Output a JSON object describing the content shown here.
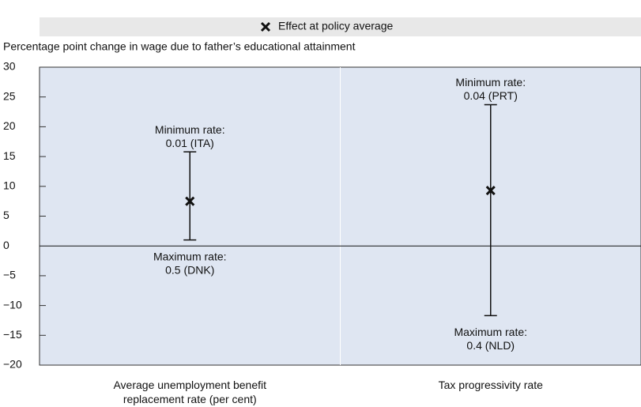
{
  "chart_data": {
    "type": "errorbar",
    "y_label": "Percentage point change in wage due to father’s educational attainment",
    "categories": [
      "Average unemployment benefit replacement rate (per cent)",
      "Tax progressivity rate"
    ],
    "series": [
      {
        "name": "Effect at policy average",
        "color": "#111111",
        "values": [
          7.5,
          9.3
        ],
        "low": [
          1.0,
          -11.7
        ],
        "high": [
          15.8,
          23.7
        ],
        "top_notes": [
          [
            "Minimum rate:",
            "0.01 (ITA)"
          ],
          [
            "Minimum rate:",
            "0.04 (PRT)"
          ]
        ],
        "bottom_notes": [
          [
            "Maximum rate:",
            "0.5 (DNK)"
          ],
          [
            "Maximum rate:",
            "0.4 (NLD)"
          ]
        ]
      }
    ],
    "ylim": [
      -20,
      30
    ],
    "yticks": [
      {
        "value": -20,
        "label": "−20"
      },
      {
        "value": -15,
        "label": "−15"
      },
      {
        "value": -10,
        "label": "−10"
      },
      {
        "value": -5,
        "label": "−5"
      },
      0,
      5,
      10,
      15,
      20,
      25,
      30
    ],
    "plot_background": "#dfe6f2",
    "legend": "top"
  }
}
